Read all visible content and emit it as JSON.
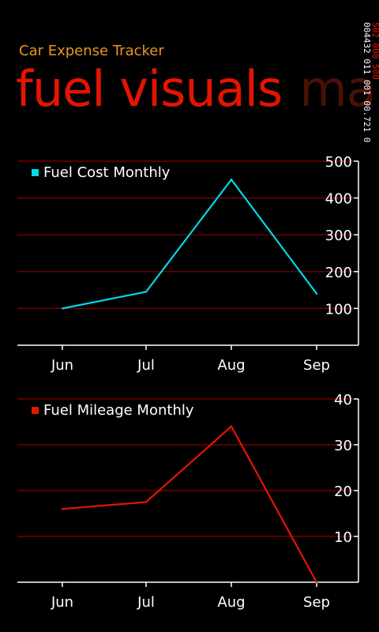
{
  "app": {
    "title": "Car Expense Tracker",
    "pivot_active": "fuel visuals",
    "pivot_next": "ma"
  },
  "debug_counters": {
    "col1": "004432 011 001 00.721 0",
    "col2": "502 000 500"
  },
  "colors": {
    "accent": "#e51400",
    "app_title": "#e8961e",
    "gridline": "#8b0000",
    "cost_series": "#00d8e8",
    "mileage_series": "#e51400"
  },
  "chart_data": [
    {
      "type": "line",
      "categories": [
        "Jun",
        "Jul",
        "Aug",
        "Sep"
      ],
      "series": [
        {
          "name": "Fuel Cost Monthly",
          "values": [
            100,
            145,
            450,
            140
          ]
        }
      ],
      "ylim": [
        0,
        500
      ],
      "yticks": [
        100,
        200,
        300,
        400,
        500
      ],
      "grid": true,
      "legend": "top-left",
      "y_axis_side": "right"
    },
    {
      "type": "line",
      "categories": [
        "Jun",
        "Jul",
        "Aug",
        "Sep"
      ],
      "series": [
        {
          "name": "Fuel Mileage Monthly",
          "values": [
            16,
            17.5,
            34,
            0
          ]
        }
      ],
      "ylim": [
        0,
        40
      ],
      "yticks": [
        10,
        20,
        30,
        40
      ],
      "grid": true,
      "legend": "top-left",
      "y_axis_side": "right"
    }
  ]
}
